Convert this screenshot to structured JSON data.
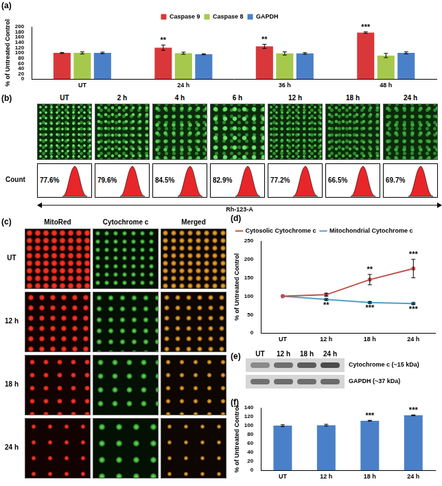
{
  "chart_data": [
    {
      "title": "(a)",
      "type": "bar",
      "categories": [
        "UT",
        "24 h",
        "36 h",
        "48 h"
      ],
      "series": [
        {
          "name": "Caspase 9",
          "color": "#d9373a",
          "values": [
            100,
            120,
            125,
            178
          ],
          "errors": [
            2,
            10,
            8,
            3
          ],
          "annotations": [
            null,
            "**",
            "**",
            "***"
          ]
        },
        {
          "name": "Caspase 8",
          "color": "#a6c84c",
          "values": [
            100,
            99,
            98,
            90
          ],
          "errors": [
            4,
            4,
            6,
            8
          ]
        },
        {
          "name": "GAPDH",
          "color": "#4a80c8",
          "values": [
            100,
            95,
            98,
            100
          ],
          "errors": [
            3,
            2,
            3,
            4
          ]
        }
      ],
      "y_label": "% of Untreated Control",
      "ylim": [
        0,
        200
      ],
      "yticks": [
        0,
        20,
        40,
        60,
        80,
        100,
        120,
        140,
        160,
        180,
        200
      ],
      "legend": "top",
      "grid": false
    },
    {
      "title": "(d)",
      "type": "line",
      "categories": [
        "UT",
        "12 h",
        "18 h",
        "24 h"
      ],
      "series": [
        {
          "name": "Cytosolic Cytochrome c",
          "color": "#c0504d",
          "values": [
            100,
            104,
            145,
            175
          ],
          "errors": [
            0,
            4,
            14,
            25
          ],
          "annotations": [
            null,
            null,
            "**",
            "***"
          ]
        },
        {
          "name": "Mitochondrial Cytochrome c",
          "color": "#4f9fc9",
          "values": [
            100,
            91,
            83,
            80
          ],
          "errors": [
            0,
            2,
            2,
            2
          ],
          "annotations": [
            null,
            "**",
            "***",
            "***"
          ]
        }
      ],
      "y_label": "% of Untreated Control",
      "ylim": [
        0,
        250
      ],
      "yticks": [
        0,
        50,
        100,
        150,
        200,
        250
      ],
      "legend": "top-left",
      "grid": false
    },
    {
      "title": "(f)",
      "type": "bar",
      "categories": [
        "UT",
        "12 h",
        "18 h",
        "24 h"
      ],
      "values": [
        100,
        101,
        111,
        123
      ],
      "errors": [
        2,
        2,
        1,
        1
      ],
      "annotations": [
        null,
        null,
        "***",
        "***"
      ],
      "color": "#4a80c8",
      "y_label": "% of Untreated Control",
      "ylim": [
        0,
        140
      ],
      "yticks": [
        0,
        20,
        40,
        60,
        80,
        100,
        120,
        140
      ],
      "grid": false
    }
  ],
  "flow_panel": {
    "title": "(b)",
    "times": [
      "UT",
      "2 h",
      "4 h",
      "6 h",
      "12 h",
      "18 h",
      "24 h"
    ],
    "percentages": [
      "77.6%",
      "79.6%",
      "84.5%",
      "82.9%",
      "77.2%",
      "66.5%",
      "69.7%"
    ],
    "y_label": "Count",
    "x_label": "Rh-123-A"
  },
  "imaging_panel": {
    "title": "(c)",
    "columns": [
      "MitoRed",
      "Cytochrome c",
      "Merged"
    ],
    "rows": [
      "UT",
      "12 h",
      "18 h",
      "24 h"
    ]
  },
  "blot_panel": {
    "title": "(e)",
    "lanes": [
      "UT",
      "12 h",
      "18 h",
      "24 h"
    ],
    "bands": [
      "Cytochrome c (~15 kDa)",
      "GAPDH (~37 kDa)"
    ]
  }
}
